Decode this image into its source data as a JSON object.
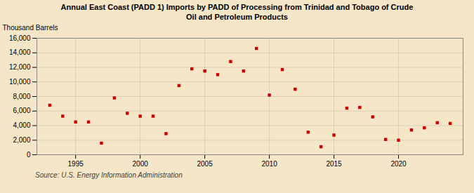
{
  "chart_data": {
    "type": "scatter",
    "title": "Annual East Coast (PADD 1) Imports by PADD of Processing from Trinidad and Tobago of Crude\nOil and Petroleum Products",
    "ylabel": "Thousand Barrels",
    "source": "Source: U.S. Energy Information Administration",
    "x": [
      1993,
      1994,
      1995,
      1996,
      1997,
      1998,
      1999,
      2000,
      2001,
      2002,
      2003,
      2004,
      2005,
      2006,
      2007,
      2008,
      2009,
      2010,
      2011,
      2012,
      2013,
      2014,
      2015,
      2016,
      2017,
      2018,
      2019,
      2020,
      2021,
      2022,
      2023,
      2024
    ],
    "values": [
      6800,
      5300,
      4500,
      4500,
      1600,
      7800,
      5700,
      5300,
      5300,
      2900,
      9500,
      11800,
      11500,
      11000,
      12800,
      11500,
      14600,
      8200,
      11700,
      9000,
      3100,
      1100,
      2700,
      6400,
      6500,
      5200,
      2100,
      2000,
      3400,
      3700,
      4400,
      4300
    ],
    "color": "#cc0000",
    "marker": "square",
    "xlim": [
      1992,
      2025
    ],
    "xticks": [
      1995,
      2000,
      2005,
      2010,
      2015,
      2020
    ],
    "ylim": [
      0,
      16000
    ],
    "yticks": [
      0,
      {
        "value": 2000,
        "label": "2,000"
      },
      {
        "value": 4000,
        "label": "4,000"
      },
      {
        "value": 6000,
        "label": "6,000"
      },
      {
        "value": 8000,
        "label": "8,000"
      },
      {
        "value": 10000,
        "label": "10,000"
      },
      {
        "value": 12000,
        "label": "12,000"
      },
      {
        "value": 14000,
        "label": "14,000"
      },
      {
        "value": 16000,
        "label": "16,000"
      }
    ],
    "grid": true
  }
}
